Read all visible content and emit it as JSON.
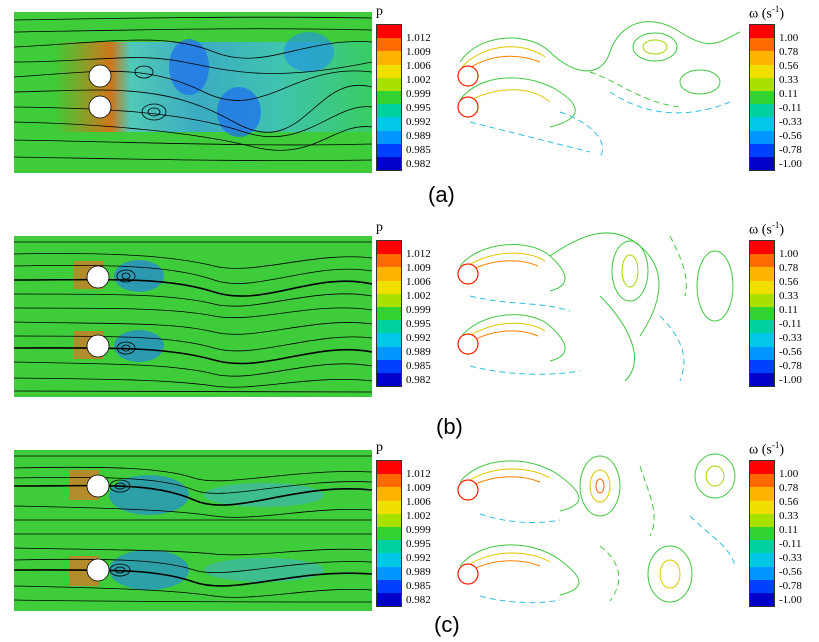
{
  "pressure_legend": {
    "symbol": "p",
    "ticks": [
      "1.012",
      "1.009",
      "1.006",
      "1.002",
      "0.999",
      "0.995",
      "0.992",
      "0.989",
      "0.985",
      "0.982"
    ]
  },
  "vorticity_legend": {
    "symbol": "ω (s",
    "exponent": "-1",
    "close": ")",
    "ticks": [
      "1.00",
      "0.78",
      "0.56",
      "0.33",
      "0.11",
      "-0.11",
      "-0.33",
      "-0.56",
      "-0.78",
      "-1.00"
    ]
  },
  "colormap": [
    "#ff0000",
    "#ff6a00",
    "#ffb400",
    "#f0e000",
    "#a8e000",
    "#32d232",
    "#00d0a0",
    "#00c8e6",
    "#0096ff",
    "#0040ff",
    "#0000c8"
  ],
  "panels": [
    {
      "label": "(a)",
      "cylinders": "tandem-close",
      "wake_lanes": 1
    },
    {
      "label": "(b)",
      "cylinders": "side-by-side",
      "wake_lanes": 2
    },
    {
      "label": "(c)",
      "cylinders": "side-by-side-wide",
      "wake_lanes": 2
    }
  ]
}
